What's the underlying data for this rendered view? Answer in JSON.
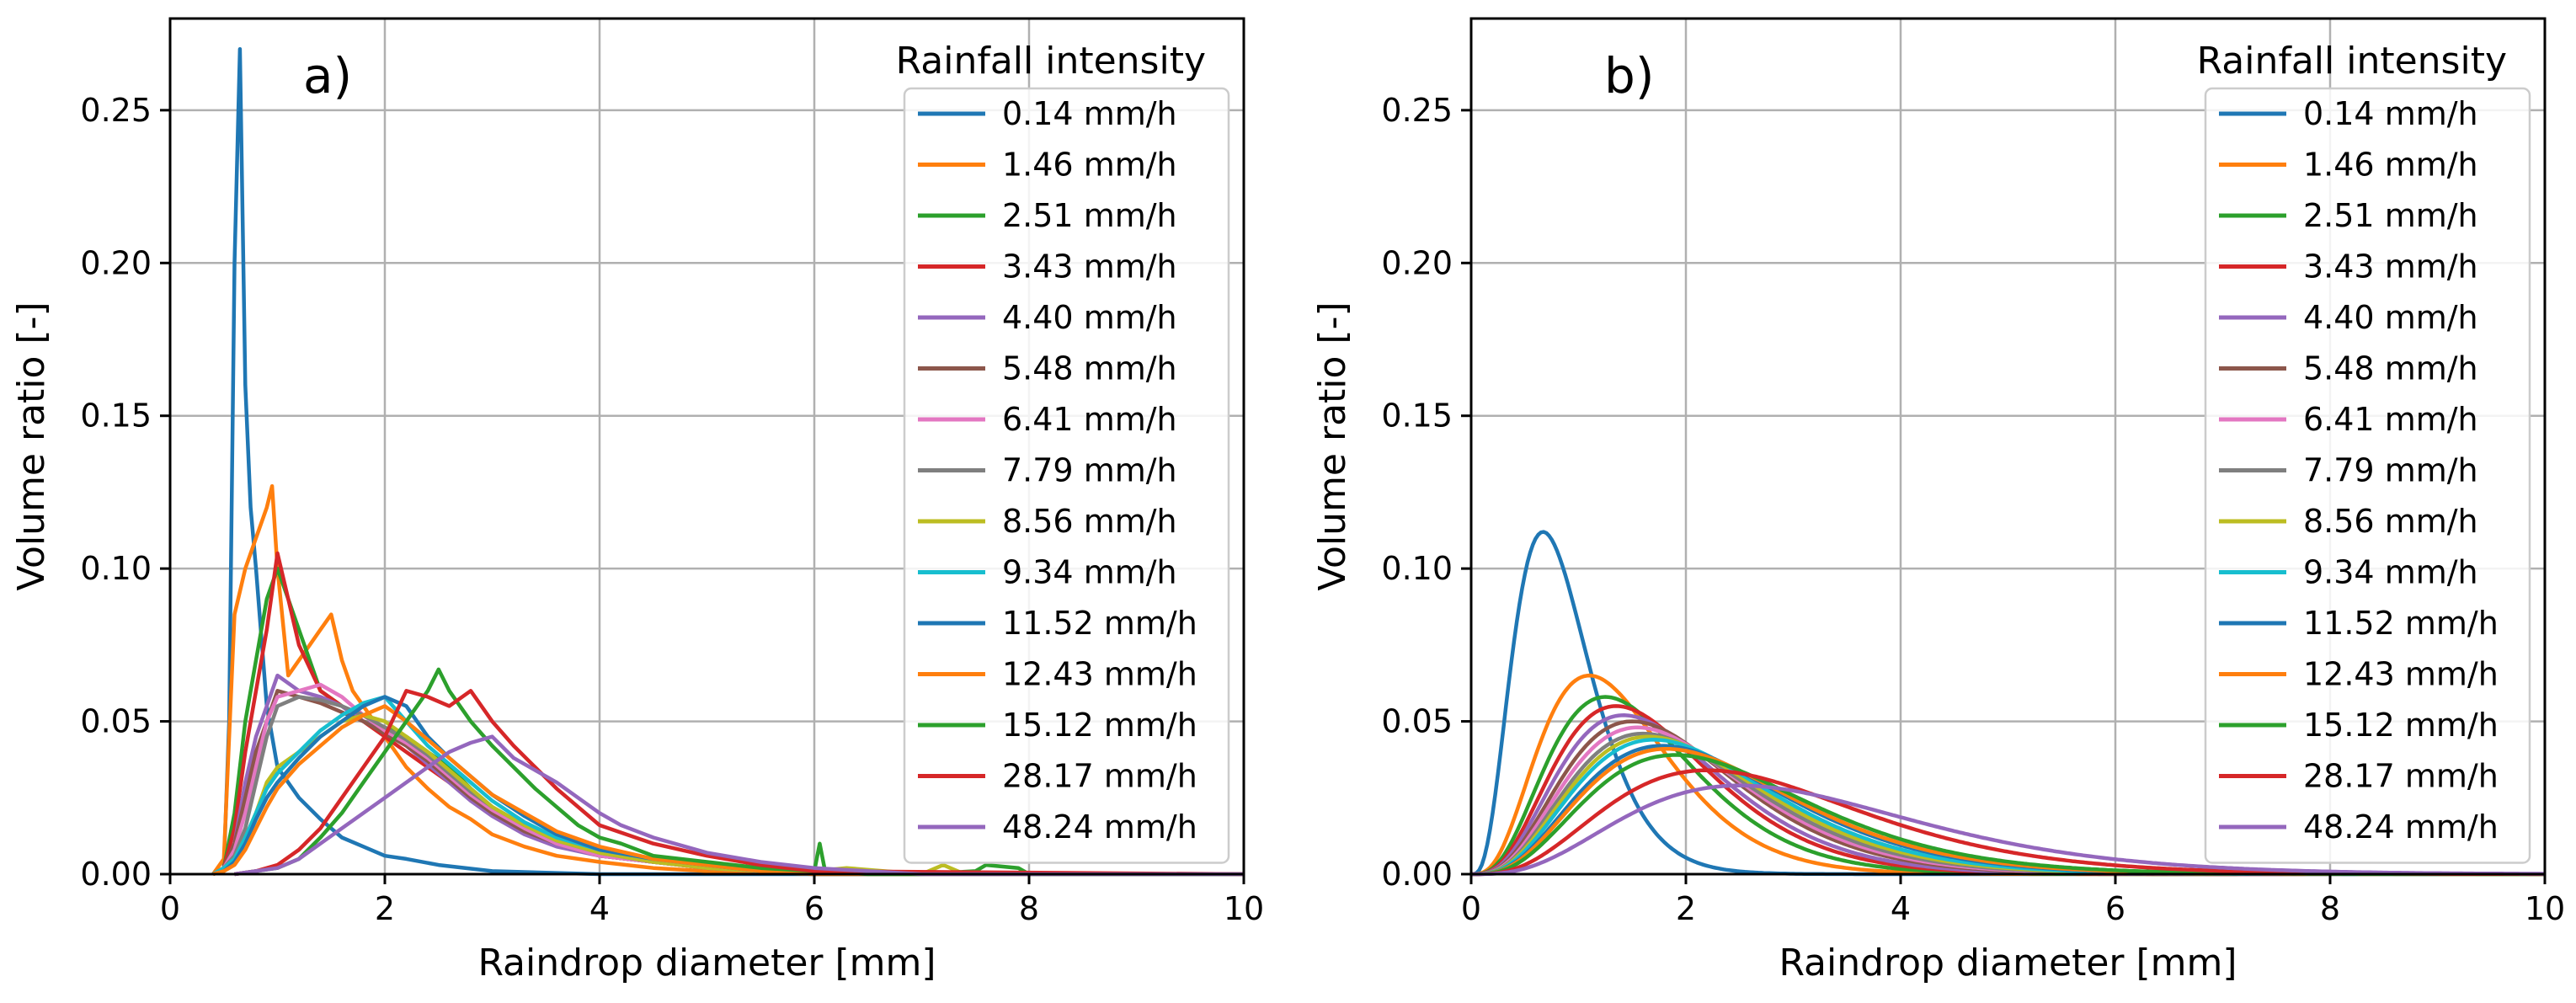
{
  "colors": [
    "#1f77b4",
    "#ff7f0e",
    "#2ca02c",
    "#d62728",
    "#9467bd",
    "#8c564b",
    "#e377c2",
    "#7f7f7f",
    "#bcbd22",
    "#17becf",
    "#1f77b4",
    "#ff7f0e",
    "#2ca02c",
    "#d62728",
    "#9467bd"
  ],
  "chart_data": [
    {
      "type": "line",
      "panel_label": "a)",
      "xlabel": "Raindrop diameter [mm]",
      "ylabel": "Volume ratio [-]",
      "xlim": [
        0,
        10
      ],
      "ylim": [
        0,
        0.28
      ],
      "xticks": [
        0,
        2,
        4,
        6,
        8,
        10
      ],
      "xtick_labels": [
        "0",
        "2",
        "4",
        "6",
        "8",
        "10"
      ],
      "yticks": [
        0,
        0.05,
        0.1,
        0.15,
        0.2,
        0.25
      ],
      "ytick_labels": [
        "0.00",
        "0.05",
        "0.10",
        "0.15",
        "0.20",
        "0.25"
      ],
      "grid": true,
      "legend_title": "Rainfall intensity",
      "legend_position": "top-right",
      "series": [
        {
          "name": "0.14 mm/h",
          "x": [
            0.4,
            0.5,
            0.55,
            0.6,
            0.65,
            0.7,
            0.75,
            0.8,
            0.9,
            1.0,
            1.2,
            1.4,
            1.6,
            1.8,
            2.0,
            2.2,
            2.5,
            3.0,
            3.5,
            4.0,
            10.0
          ],
          "y": [
            0,
            0.002,
            0.05,
            0.2,
            0.27,
            0.16,
            0.12,
            0.1,
            0.055,
            0.035,
            0.025,
            0.018,
            0.012,
            0.009,
            0.006,
            0.005,
            0.003,
            0.001,
            0.0005,
            0,
            0
          ]
        },
        {
          "name": "1.46 mm/h",
          "x": [
            0.4,
            0.5,
            0.6,
            0.7,
            0.8,
            0.9,
            0.95,
            1.0,
            1.1,
            1.2,
            1.3,
            1.4,
            1.5,
            1.6,
            1.7,
            1.8,
            1.9,
            2.0,
            2.2,
            2.4,
            2.6,
            2.8,
            3.0,
            3.3,
            3.6,
            4.0,
            4.5,
            5.0,
            6.0,
            10.0
          ],
          "y": [
            0,
            0.005,
            0.085,
            0.1,
            0.11,
            0.12,
            0.127,
            0.1,
            0.065,
            0.07,
            0.075,
            0.08,
            0.085,
            0.07,
            0.06,
            0.055,
            0.05,
            0.045,
            0.035,
            0.028,
            0.022,
            0.018,
            0.013,
            0.009,
            0.006,
            0.004,
            0.002,
            0.001,
            0,
            0
          ]
        },
        {
          "name": "2.51 mm/h",
          "x": [
            0.4,
            0.5,
            0.6,
            0.7,
            0.8,
            0.9,
            1.0,
            1.1,
            1.2,
            1.4,
            1.6,
            1.8,
            2.0,
            2.2,
            2.4,
            2.6,
            2.8,
            3.0,
            3.3,
            3.6,
            4.0,
            4.5,
            5.0,
            5.5,
            6.0,
            6.5,
            10.0
          ],
          "y": [
            0,
            0.002,
            0.02,
            0.05,
            0.07,
            0.09,
            0.1,
            0.09,
            0.08,
            0.06,
            0.055,
            0.05,
            0.048,
            0.045,
            0.04,
            0.035,
            0.028,
            0.022,
            0.015,
            0.01,
            0.006,
            0.004,
            0.003,
            0.002,
            0.001,
            0,
            0
          ]
        },
        {
          "name": "3.43 mm/h",
          "x": [
            0.4,
            0.5,
            0.6,
            0.7,
            0.8,
            0.9,
            1.0,
            1.1,
            1.2,
            1.4,
            1.6,
            1.8,
            2.0,
            2.2,
            2.4,
            2.6,
            2.8,
            3.0,
            3.3,
            3.6,
            4.0,
            4.5,
            5.0,
            5.5,
            6.0,
            10.0
          ],
          "y": [
            0,
            0.002,
            0.015,
            0.04,
            0.06,
            0.08,
            0.105,
            0.09,
            0.075,
            0.06,
            0.055,
            0.05,
            0.045,
            0.04,
            0.035,
            0.03,
            0.025,
            0.02,
            0.014,
            0.01,
            0.006,
            0.004,
            0.002,
            0.001,
            0,
            0
          ]
        },
        {
          "name": "4.40 mm/h",
          "x": [
            0.4,
            0.5,
            0.6,
            0.7,
            0.8,
            0.9,
            1.0,
            1.2,
            1.4,
            1.6,
            1.8,
            2.0,
            2.2,
            2.4,
            2.6,
            2.8,
            3.0,
            3.3,
            3.6,
            4.0,
            4.5,
            5.0,
            5.5,
            6.0,
            10.0
          ],
          "y": [
            0,
            0.002,
            0.01,
            0.03,
            0.045,
            0.055,
            0.065,
            0.06,
            0.058,
            0.055,
            0.05,
            0.047,
            0.042,
            0.036,
            0.03,
            0.024,
            0.019,
            0.013,
            0.009,
            0.006,
            0.004,
            0.002,
            0.001,
            0,
            0
          ]
        },
        {
          "name": "5.48 mm/h",
          "x": [
            0.4,
            0.5,
            0.6,
            0.7,
            0.8,
            0.9,
            1.0,
            1.2,
            1.4,
            1.6,
            1.8,
            2.0,
            2.2,
            2.4,
            2.6,
            2.8,
            3.0,
            3.3,
            3.6,
            4.0,
            4.5,
            5.0,
            5.5,
            6.0,
            10.0
          ],
          "y": [
            0,
            0.002,
            0.01,
            0.025,
            0.04,
            0.05,
            0.06,
            0.058,
            0.056,
            0.053,
            0.05,
            0.046,
            0.042,
            0.037,
            0.031,
            0.025,
            0.02,
            0.014,
            0.01,
            0.006,
            0.004,
            0.002,
            0.001,
            0,
            0
          ]
        },
        {
          "name": "6.41 mm/h",
          "x": [
            0.4,
            0.5,
            0.6,
            0.7,
            0.8,
            0.9,
            1.0,
            1.2,
            1.4,
            1.6,
            1.8,
            2.0,
            2.2,
            2.4,
            2.6,
            2.8,
            3.0,
            3.3,
            3.6,
            4.0,
            4.5,
            5.0,
            5.5,
            6.0,
            10.0
          ],
          "y": [
            0,
            0.002,
            0.008,
            0.02,
            0.035,
            0.05,
            0.058,
            0.06,
            0.062,
            0.058,
            0.052,
            0.047,
            0.043,
            0.038,
            0.032,
            0.026,
            0.021,
            0.015,
            0.01,
            0.006,
            0.004,
            0.002,
            0.001,
            0,
            0
          ]
        },
        {
          "name": "7.79 mm/h",
          "x": [
            0.4,
            0.5,
            0.6,
            0.7,
            0.8,
            0.9,
            1.0,
            1.2,
            1.4,
            1.6,
            1.8,
            2.0,
            2.2,
            2.4,
            2.6,
            2.8,
            3.0,
            3.3,
            3.6,
            4.0,
            4.5,
            5.0,
            5.5,
            6.0,
            10.0
          ],
          "y": [
            0,
            0.002,
            0.006,
            0.015,
            0.03,
            0.045,
            0.055,
            0.058,
            0.057,
            0.055,
            0.052,
            0.048,
            0.044,
            0.039,
            0.033,
            0.027,
            0.022,
            0.016,
            0.011,
            0.007,
            0.004,
            0.002,
            0.001,
            0,
            0
          ]
        },
        {
          "name": "8.56 mm/h",
          "x": [
            0.4,
            0.5,
            0.6,
            0.7,
            0.8,
            0.9,
            1.0,
            1.2,
            1.4,
            1.6,
            1.8,
            2.0,
            2.2,
            2.4,
            2.6,
            2.8,
            3.0,
            3.3,
            3.6,
            4.0,
            4.5,
            5.0,
            5.5,
            6.0,
            6.3,
            7.0,
            7.2,
            7.4,
            10.0
          ],
          "y": [
            0,
            0.002,
            0.005,
            0.012,
            0.02,
            0.03,
            0.035,
            0.04,
            0.045,
            0.05,
            0.052,
            0.05,
            0.045,
            0.04,
            0.034,
            0.028,
            0.022,
            0.016,
            0.011,
            0.007,
            0.004,
            0.002,
            0.001,
            0.001,
            0.002,
            0,
            0.003,
            0,
            0
          ]
        },
        {
          "name": "9.34 mm/h",
          "x": [
            0.4,
            0.5,
            0.6,
            0.7,
            0.8,
            0.9,
            1.0,
            1.2,
            1.4,
            1.6,
            1.8,
            2.0,
            2.2,
            2.4,
            2.6,
            2.8,
            3.0,
            3.3,
            3.6,
            4.0,
            4.5,
            5.0,
            5.5,
            6.0,
            10.0
          ],
          "y": [
            0,
            0.002,
            0.005,
            0.012,
            0.02,
            0.028,
            0.033,
            0.04,
            0.047,
            0.052,
            0.056,
            0.058,
            0.05,
            0.042,
            0.036,
            0.03,
            0.024,
            0.017,
            0.012,
            0.008,
            0.005,
            0.003,
            0.001,
            0,
            0
          ]
        },
        {
          "name": "11.52 mm/h",
          "x": [
            0.4,
            0.5,
            0.6,
            0.7,
            0.8,
            0.9,
            1.0,
            1.2,
            1.4,
            1.6,
            1.8,
            2.0,
            2.2,
            2.4,
            2.6,
            2.8,
            3.0,
            3.3,
            3.6,
            4.0,
            4.5,
            5.0,
            5.5,
            6.0,
            10.0
          ],
          "y": [
            0,
            0.001,
            0.004,
            0.01,
            0.018,
            0.025,
            0.03,
            0.038,
            0.045,
            0.05,
            0.055,
            0.058,
            0.055,
            0.045,
            0.038,
            0.032,
            0.026,
            0.019,
            0.013,
            0.008,
            0.005,
            0.003,
            0.001,
            0,
            0
          ]
        },
        {
          "name": "12.43 mm/h",
          "x": [
            0.4,
            0.5,
            0.6,
            0.7,
            0.8,
            0.9,
            1.0,
            1.2,
            1.4,
            1.6,
            1.8,
            2.0,
            2.2,
            2.4,
            2.6,
            2.8,
            3.0,
            3.3,
            3.6,
            4.0,
            4.5,
            5.0,
            5.5,
            6.0,
            10.0
          ],
          "y": [
            0,
            0.001,
            0.003,
            0.008,
            0.015,
            0.022,
            0.028,
            0.036,
            0.042,
            0.048,
            0.052,
            0.055,
            0.05,
            0.044,
            0.038,
            0.032,
            0.026,
            0.02,
            0.014,
            0.009,
            0.005,
            0.003,
            0.001,
            0,
            0
          ]
        },
        {
          "name": "15.12 mm/h",
          "x": [
            0.6,
            0.8,
            1.0,
            1.2,
            1.4,
            1.6,
            1.8,
            2.0,
            2.2,
            2.4,
            2.5,
            2.6,
            2.8,
            3.0,
            3.2,
            3.4,
            3.6,
            3.8,
            4.0,
            4.2,
            4.5,
            5.0,
            5.5,
            6.0,
            6.05,
            6.1,
            6.5,
            7.0,
            7.5,
            7.6,
            7.9,
            8.0,
            10.0
          ],
          "y": [
            0,
            0.001,
            0.002,
            0.005,
            0.012,
            0.02,
            0.03,
            0.04,
            0.05,
            0.06,
            0.067,
            0.06,
            0.05,
            0.042,
            0.035,
            0.028,
            0.022,
            0.016,
            0.012,
            0.01,
            0.006,
            0.004,
            0.002,
            0.001,
            0.01,
            0.001,
            0,
            0,
            0.001,
            0.003,
            0.002,
            0,
            0
          ]
        },
        {
          "name": "28.17 mm/h",
          "x": [
            0.6,
            0.8,
            1.0,
            1.2,
            1.4,
            1.6,
            1.8,
            2.0,
            2.2,
            2.4,
            2.6,
            2.8,
            3.0,
            3.2,
            3.4,
            3.6,
            3.8,
            4.0,
            4.5,
            5.0,
            5.5,
            6.0,
            10.0
          ],
          "y": [
            0,
            0.001,
            0.003,
            0.008,
            0.015,
            0.025,
            0.035,
            0.045,
            0.06,
            0.058,
            0.055,
            0.06,
            0.05,
            0.042,
            0.035,
            0.028,
            0.022,
            0.016,
            0.01,
            0.006,
            0.003,
            0.001,
            0
          ]
        },
        {
          "name": "48.24 mm/h",
          "x": [
            0.6,
            0.8,
            1.0,
            1.2,
            1.4,
            1.6,
            1.8,
            2.0,
            2.2,
            2.4,
            2.6,
            2.8,
            3.0,
            3.2,
            3.4,
            3.6,
            3.8,
            4.0,
            4.2,
            4.5,
            5.0,
            5.5,
            6.0,
            6.5,
            7.0,
            10.0
          ],
          "y": [
            0,
            0.001,
            0.002,
            0.005,
            0.01,
            0.015,
            0.02,
            0.025,
            0.03,
            0.035,
            0.04,
            0.043,
            0.045,
            0.038,
            0.034,
            0.03,
            0.025,
            0.02,
            0.016,
            0.012,
            0.007,
            0.004,
            0.002,
            0.001,
            0,
            0
          ]
        }
      ]
    },
    {
      "type": "line",
      "panel_label": "b)",
      "xlabel": "Raindrop diameter [mm]",
      "ylabel": "Volume ratio [-]",
      "xlim": [
        0,
        10
      ],
      "ylim": [
        0,
        0.28
      ],
      "xticks": [
        0,
        2,
        4,
        6,
        8,
        10
      ],
      "xtick_labels": [
        "0",
        "2",
        "4",
        "6",
        "8",
        "10"
      ],
      "yticks": [
        0,
        0.05,
        0.1,
        0.15,
        0.2,
        0.25
      ],
      "ytick_labels": [
        "0.00",
        "0.05",
        "0.10",
        "0.15",
        "0.20",
        "0.25"
      ],
      "grid": true,
      "legend_title": "Rainfall intensity",
      "legend_position": "top-right",
      "series": [
        {
          "name": "0.14 mm/h",
          "peak_x": 0.67,
          "peak_y": 0.112,
          "right_limit": 2.0
        },
        {
          "name": "1.46 mm/h",
          "peak_x": 1.1,
          "peak_y": 0.065,
          "right_limit": 3.8
        },
        {
          "name": "2.51 mm/h",
          "peak_x": 1.25,
          "peak_y": 0.058,
          "right_limit": 4.4
        },
        {
          "name": "3.43 mm/h",
          "peak_x": 1.35,
          "peak_y": 0.055,
          "right_limit": 4.7
        },
        {
          "name": "4.40 mm/h",
          "peak_x": 1.42,
          "peak_y": 0.052,
          "right_limit": 5.0
        },
        {
          "name": "5.48 mm/h",
          "peak_x": 1.5,
          "peak_y": 0.05,
          "right_limit": 5.2
        },
        {
          "name": "6.41 mm/h",
          "peak_x": 1.55,
          "peak_y": 0.048,
          "right_limit": 5.4
        },
        {
          "name": "7.79 mm/h",
          "peak_x": 1.6,
          "peak_y": 0.046,
          "right_limit": 5.6
        },
        {
          "name": "8.56 mm/h",
          "peak_x": 1.65,
          "peak_y": 0.045,
          "right_limit": 5.7
        },
        {
          "name": "9.34 mm/h",
          "peak_x": 1.7,
          "peak_y": 0.044,
          "right_limit": 5.8
        },
        {
          "name": "11.52 mm/h",
          "peak_x": 1.78,
          "peak_y": 0.042,
          "right_limit": 6.0
        },
        {
          "name": "12.43 mm/h",
          "peak_x": 1.82,
          "peak_y": 0.041,
          "right_limit": 6.1
        },
        {
          "name": "15.12 mm/h",
          "peak_x": 1.9,
          "peak_y": 0.039,
          "right_limit": 6.4
        },
        {
          "name": "28.17 mm/h",
          "peak_x": 2.2,
          "peak_y": 0.034,
          "right_limit": 7.2
        },
        {
          "name": "48.24 mm/h",
          "peak_x": 2.5,
          "peak_y": 0.029,
          "right_limit": 8.2
        }
      ]
    }
  ]
}
